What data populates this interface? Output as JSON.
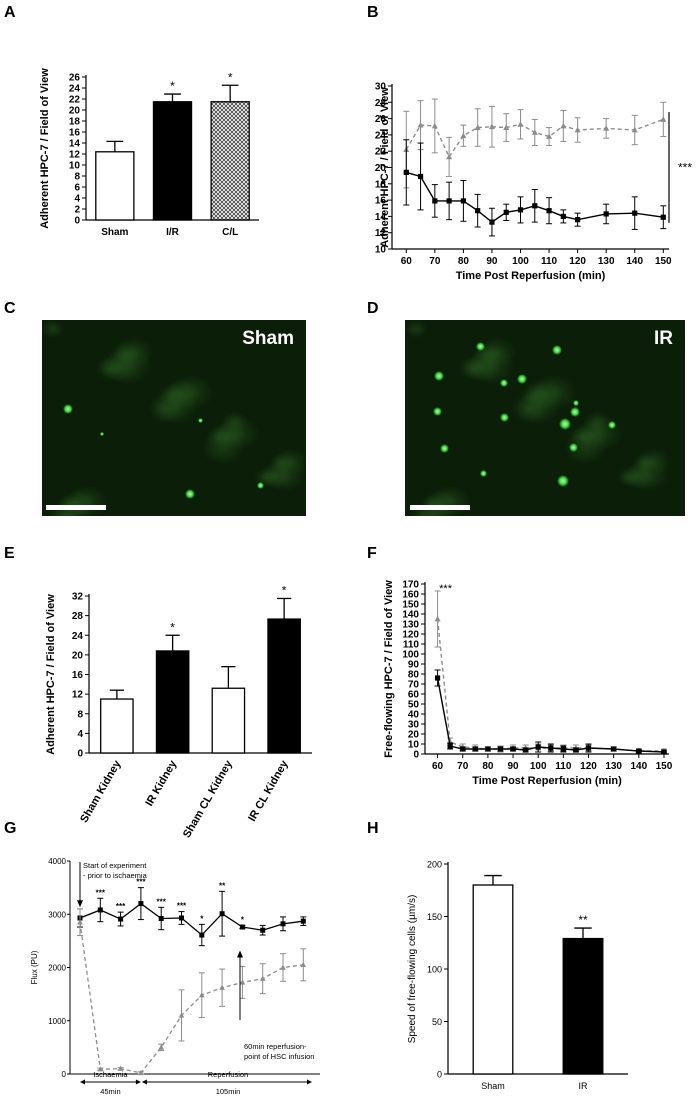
{
  "panel_letters": [
    "A",
    "B",
    "C",
    "D",
    "E",
    "F",
    "G",
    "H"
  ],
  "micrographs": {
    "C": {
      "label": "Sham"
    },
    "D": {
      "label": "IR"
    },
    "fluorescence_color": "#3cd83c"
  },
  "chart_data": [
    {
      "panel": "A",
      "type": "bar",
      "categories": [
        "Sham",
        "I/R",
        "C/L"
      ],
      "values": [
        12.4,
        21.5,
        21.5
      ],
      "errors": [
        1.9,
        1.4,
        3.0
      ],
      "fills": [
        "white",
        "black",
        "crosshatch"
      ],
      "significance": [
        "",
        "*",
        "*"
      ],
      "ylabel": "Adherent HPC-7 / Field of View",
      "ylim": [
        0,
        26
      ],
      "yticks": [
        0,
        2,
        4,
        6,
        8,
        10,
        12,
        14,
        16,
        18,
        20,
        22,
        24,
        26
      ]
    },
    {
      "panel": "B",
      "type": "line",
      "xlabel": "Time Post Reperfusion (min)",
      "ylabel": "Adherent HPC-7 / Field of View",
      "xlim": [
        55,
        152
      ],
      "ylim": [
        10,
        30
      ],
      "xticks": [
        60,
        70,
        80,
        90,
        100,
        110,
        120,
        130,
        140,
        150
      ],
      "yticks": [
        10,
        12,
        14,
        16,
        18,
        20,
        22,
        24,
        26,
        28,
        30
      ],
      "x": [
        60,
        65,
        70,
        75,
        80,
        85,
        90,
        95,
        100,
        105,
        110,
        115,
        120,
        130,
        140,
        150
      ],
      "series": [
        {
          "style": "dashed",
          "color": "#8c8c8c",
          "marker": "triangle",
          "values": [
            22.2,
            25.2,
            25.1,
            21.3,
            23.9,
            24.9,
            25.0,
            24.9,
            25.3,
            24.3,
            23.8,
            25.1,
            24.6,
            24.8,
            24.6,
            25.9
          ],
          "errors": [
            4.7,
            3.0,
            3.3,
            2.4,
            1.3,
            2.3,
            2.5,
            1.7,
            1.8,
            1.6,
            1.1,
            1.9,
            1.5,
            1.2,
            1.8,
            2.1
          ]
        },
        {
          "style": "solid",
          "color": "#000000",
          "marker": "square",
          "values": [
            19.4,
            18.9,
            15.9,
            15.9,
            15.9,
            14.7,
            13.3,
            14.5,
            14.8,
            15.3,
            14.7,
            14.0,
            13.6,
            14.3,
            14.4,
            13.9
          ],
          "errors": [
            4.0,
            4.1,
            2.0,
            2.3,
            2.5,
            2.0,
            1.7,
            1.0,
            1.6,
            2.0,
            1.6,
            0.8,
            0.8,
            1.2,
            2.0,
            1.4
          ]
        }
      ],
      "significance": "***"
    },
    {
      "panel": "E",
      "type": "bar",
      "categories": [
        "Sham Kidney",
        "IR Kidney",
        "Sham CL Kidney",
        "IR CL Kidney"
      ],
      "values": [
        11.0,
        20.8,
        13.2,
        27.3
      ],
      "errors": [
        1.8,
        3.2,
        4.4,
        4.2
      ],
      "fills": [
        "white",
        "black",
        "white",
        "black"
      ],
      "significance": [
        "",
        "*",
        "",
        "*"
      ],
      "ylabel": "Adherent HPC-7 / Field of View",
      "ylim": [
        0,
        32
      ],
      "yticks": [
        0,
        4,
        8,
        12,
        16,
        20,
        24,
        28,
        32
      ]
    },
    {
      "panel": "F",
      "type": "line",
      "xlabel": "Time Post Reperfusion (min)",
      "ylabel": "Free-flowing HPC-7 / Field of View",
      "xlim": [
        55,
        152
      ],
      "ylim": [
        0,
        170
      ],
      "xticks": [
        60,
        70,
        80,
        90,
        100,
        110,
        120,
        130,
        140,
        150
      ],
      "yticks": [
        0,
        10,
        20,
        30,
        40,
        50,
        60,
        70,
        80,
        90,
        100,
        110,
        120,
        130,
        140,
        150,
        160,
        170
      ],
      "x": [
        60,
        65,
        70,
        75,
        80,
        85,
        90,
        95,
        100,
        105,
        110,
        115,
        120,
        130,
        140,
        150
      ],
      "series": [
        {
          "style": "dashed",
          "color": "#8c8c8c",
          "marker": "triangle",
          "values": [
            135,
            12,
            7,
            6,
            5,
            5,
            6,
            6,
            6,
            6,
            6,
            6,
            6,
            5,
            3,
            3
          ],
          "errors": [
            28,
            4,
            3,
            3,
            2,
            3,
            3,
            3,
            4,
            3,
            3,
            3,
            3,
            2,
            2,
            2
          ]
        },
        {
          "style": "solid",
          "color": "#000000",
          "marker": "square",
          "values": [
            76,
            8,
            5,
            5,
            5,
            5,
            5,
            4,
            7,
            6,
            5,
            4,
            6,
            5,
            3,
            2
          ],
          "errors": [
            8,
            3,
            2,
            2,
            2,
            2,
            2,
            2,
            5,
            4,
            3,
            2,
            4,
            2,
            1,
            1
          ]
        }
      ],
      "significance": "***"
    },
    {
      "panel": "G",
      "type": "line",
      "ylabel": "Flux (PU)",
      "ylim": [
        0,
        4000
      ],
      "yticks": [
        0,
        1000,
        2000,
        3000,
        4000
      ],
      "x": [
        0,
        1,
        2,
        3,
        4,
        5,
        6,
        7,
        8,
        9,
        10,
        11,
        12,
        13
      ],
      "series": [
        {
          "style": "solid",
          "color": "#000000",
          "marker": "square",
          "values": [
            2930,
            3080,
            2910,
            3200,
            2920,
            2930,
            2610,
            3010,
            2760,
            2700,
            2820,
            2870
          ],
          "x": [
            0,
            1,
            2,
            3,
            4,
            5,
            6,
            7,
            8,
            9,
            10,
            11
          ],
          "errors": [
            170,
            220,
            130,
            300,
            210,
            120,
            200,
            420,
            30,
            90,
            130,
            80
          ]
        },
        {
          "style": "dashed",
          "color": "#8c8c8c",
          "marker": "triangle",
          "values": [
            2850,
            90,
            100,
            20,
            500,
            1100,
            1480,
            1620,
            1720,
            1790,
            2000,
            2050
          ],
          "x": [
            0,
            1,
            2,
            3,
            4,
            5,
            6,
            7,
            8,
            9,
            10,
            11
          ],
          "errors": [
            250,
            20,
            20,
            20,
            60,
            480,
            420,
            350,
            300,
            280,
            260,
            300
          ]
        }
      ],
      "significance_marks": [
        "***",
        "***",
        "***",
        "***",
        "***",
        "*",
        "**",
        "*"
      ],
      "annotations": {
        "start": "Start of experiment\n- prior to ischaemia",
        "infusion": "60min reperfusion-\npoint of HSC infusion",
        "ischaemia": "Ischaemia",
        "ischaemia_duration": "45min",
        "reperfusion": "Reperfusion",
        "reperfusion_duration": "105min"
      }
    },
    {
      "panel": "H",
      "type": "bar",
      "categories": [
        "Sham",
        "IR"
      ],
      "values": [
        180,
        129
      ],
      "errors": [
        9,
        10
      ],
      "fills": [
        "white",
        "black"
      ],
      "significance": [
        "",
        "**"
      ],
      "ylabel": "Speed of free-flowing cells (µm/s)",
      "ylim": [
        0,
        200
      ],
      "yticks": [
        0,
        50,
        100,
        150,
        200
      ]
    }
  ]
}
